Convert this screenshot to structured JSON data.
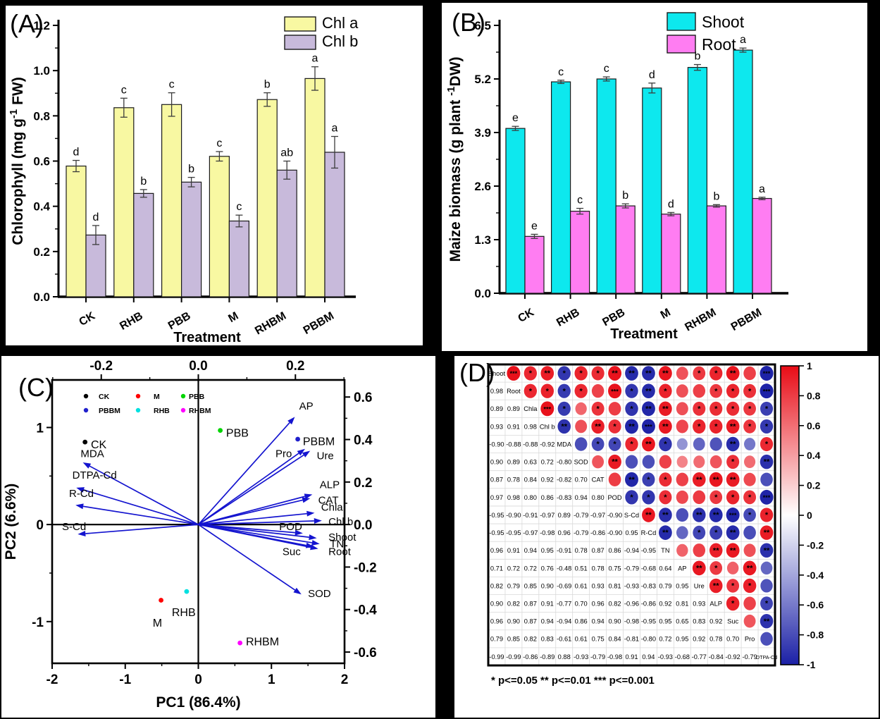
{
  "figure": {
    "background": "#000000",
    "panel_labels": {
      "A": "(A)",
      "B": "(B)",
      "C": "(C)",
      "D": "(D)"
    },
    "significance_note": "* p<=0.05  ** p<=0.01  *** p<=0.001"
  },
  "chart_data": [
    {
      "id": "A",
      "type": "bar",
      "xlabel": "Treatment",
      "ylabel": {
        "pre": "Chlorophyll  (mg g",
        "sup": "-1",
        "post": " FW)"
      },
      "categories": [
        "CK",
        "RHB",
        "PBB",
        "M",
        "RHBM",
        "PBBM"
      ],
      "yticks": [
        0.0,
        0.2,
        0.4,
        0.6,
        0.8,
        1.0,
        1.2
      ],
      "ylim": [
        0,
        1.2
      ],
      "legend_position": "top-right",
      "series": [
        {
          "name": "Chl a",
          "color": "#f8f8a2",
          "values": [
            0.578,
            0.836,
            0.85,
            0.621,
            0.872,
            0.965
          ],
          "errors": [
            0.025,
            0.042,
            0.052,
            0.021,
            0.03,
            0.052
          ],
          "letters": [
            "d",
            "c",
            "c",
            "c",
            "b",
            "a"
          ]
        },
        {
          "name": "Chl b",
          "color": "#c8badb",
          "values": [
            0.273,
            0.457,
            0.507,
            0.335,
            0.56,
            0.639
          ],
          "errors": [
            0.042,
            0.017,
            0.021,
            0.026,
            0.04,
            0.07
          ],
          "letters": [
            "d",
            "b",
            "b",
            "c",
            "ab",
            "a"
          ]
        }
      ]
    },
    {
      "id": "B",
      "type": "bar",
      "xlabel": "Treatment",
      "ylabel": {
        "pre": "Maize biomass (g plant ",
        "sup": "-1",
        "post": "DW)"
      },
      "categories": [
        "CK",
        "RHB",
        "PBB",
        "M",
        "RHBM",
        "PBBM"
      ],
      "yticks": [
        0.0,
        1.3,
        2.6,
        3.9,
        5.2,
        6.5
      ],
      "ylim": [
        0,
        6.5
      ],
      "legend_position": "top-right",
      "series": [
        {
          "name": "Shoot",
          "color": "#0de8ee",
          "values": [
            4.0,
            5.13,
            5.2,
            4.98,
            5.48,
            5.9
          ],
          "errors": [
            0.05,
            0.04,
            0.05,
            0.12,
            0.07,
            0.05
          ],
          "letters": [
            "e",
            "c",
            "c",
            "d",
            "b",
            "a"
          ]
        },
        {
          "name": "Root",
          "color": "#ff7df2",
          "values": [
            1.38,
            1.99,
            2.12,
            1.92,
            2.12,
            2.3
          ],
          "errors": [
            0.05,
            0.07,
            0.05,
            0.04,
            0.03,
            0.03
          ],
          "letters": [
            "e",
            "c",
            "b",
            "d",
            "b",
            "a"
          ]
        }
      ]
    },
    {
      "id": "C",
      "type": "scatter",
      "xlabel": "PC1 (86.4%)",
      "ylabel": "PC2 (6.6%)",
      "xticks": [
        -2,
        -1,
        0,
        1,
        2
      ],
      "yticks": [
        -1,
        0,
        1
      ],
      "top_ticks": [
        -0.2,
        0.0,
        0.2
      ],
      "right_ticks": [
        0.6,
        0.4,
        0.2,
        0.0,
        -0.2,
        -0.4,
        -0.6
      ],
      "xlim": [
        -2,
        2
      ],
      "ylim": [
        -1.43,
        1.49
      ],
      "loading_x_scale": 6.64,
      "loading_y_scale": 2.19,
      "arrow_color": "#1414cf",
      "legend": [
        {
          "label": "CK",
          "color": "#000000"
        },
        {
          "label": "M",
          "color": "#ff0000"
        },
        {
          "label": "PBB",
          "color": "#00d400"
        },
        {
          "label": "PBBM",
          "color": "#2020cc"
        },
        {
          "label": "RHB",
          "color": "#00e0e0"
        },
        {
          "label": "RHBM",
          "color": "#ff00ff"
        }
      ],
      "points": [
        {
          "label": "CK",
          "color": "#000000",
          "x": -1.55,
          "y": 0.85,
          "lx": -1.47,
          "ly": 0.83,
          "anchor": "start"
        },
        {
          "label": "M",
          "color": "#ff0000",
          "x": -0.51,
          "y": -0.78,
          "lx": -0.56,
          "ly": -1.01,
          "anchor": "middle"
        },
        {
          "label": "PBB",
          "color": "#00d400",
          "x": 0.3,
          "y": 0.97,
          "lx": 0.38,
          "ly": 0.95,
          "anchor": "start"
        },
        {
          "label": "PBBM",
          "color": "#2020cc",
          "x": 1.36,
          "y": 0.88,
          "lx": 1.43,
          "ly": 0.86,
          "anchor": "start"
        },
        {
          "label": "RHB",
          "color": "#00e0e0",
          "x": -0.16,
          "y": -0.69,
          "lx": -0.2,
          "ly": -0.9,
          "anchor": "middle"
        },
        {
          "label": "RHBM",
          "color": "#ff00ff",
          "x": 0.57,
          "y": -1.22,
          "lx": 0.65,
          "ly": -1.2,
          "anchor": "start"
        }
      ],
      "arrows": [
        {
          "label": "AP",
          "x": 1.32,
          "y": 1.11,
          "lx": 1.38,
          "ly": 1.22,
          "anchor": "start"
        },
        {
          "label": "Pro",
          "x": 1.46,
          "y": 0.78,
          "lx": 1.28,
          "ly": 0.73,
          "anchor": "end"
        },
        {
          "label": "Ure",
          "x": 1.53,
          "y": 0.76,
          "lx": 1.62,
          "ly": 0.71,
          "anchor": "start"
        },
        {
          "label": "ALP",
          "x": 1.56,
          "y": 0.31,
          "lx": 1.66,
          "ly": 0.41,
          "anchor": "start"
        },
        {
          "label": "CAT",
          "x": 1.53,
          "y": 0.27,
          "lx": 1.64,
          "ly": 0.25,
          "anchor": "start"
        },
        {
          "label": "Chla",
          "x": 1.59,
          "y": 0.12,
          "lx": 1.68,
          "ly": 0.18,
          "anchor": "start"
        },
        {
          "label": "Chl b",
          "x": 1.69,
          "y": 0.04,
          "lx": 1.78,
          "ly": 0.03,
          "anchor": "start"
        },
        {
          "label": "POD",
          "x": 1.43,
          "y": -0.09,
          "lx": 1.42,
          "ly": -0.02,
          "anchor": "end"
        },
        {
          "label": "Shoot",
          "x": 1.62,
          "y": -0.14,
          "lx": 1.78,
          "ly": -0.13,
          "anchor": "start"
        },
        {
          "label": "TN",
          "x": 1.66,
          "y": -0.2,
          "lx": 1.8,
          "ly": -0.2,
          "anchor": "start"
        },
        {
          "label": "Root",
          "x": 1.64,
          "y": -0.25,
          "lx": 1.78,
          "ly": -0.28,
          "anchor": "start"
        },
        {
          "label": "Suc",
          "x": 1.58,
          "y": -0.23,
          "lx": 1.4,
          "ly": -0.28,
          "anchor": "end"
        },
        {
          "label": "SOD",
          "x": 1.41,
          "y": -0.72,
          "lx": 1.5,
          "ly": -0.71,
          "anchor": "start"
        },
        {
          "label": "MDA",
          "x": -1.58,
          "y": 0.64,
          "lx": -1.45,
          "ly": 0.73,
          "anchor": "middle"
        },
        {
          "label": "DTPA-Cd",
          "x": -1.67,
          "y": 0.38,
          "lx": -1.42,
          "ly": 0.51,
          "anchor": "middle"
        },
        {
          "label": "R-Cd",
          "x": -1.68,
          "y": 0.2,
          "lx": -1.6,
          "ly": 0.32,
          "anchor": "middle"
        },
        {
          "label": "S-Cd",
          "x": -1.65,
          "y": -0.1,
          "lx": -1.7,
          "ly": -0.02,
          "anchor": "middle"
        }
      ]
    },
    {
      "id": "D",
      "type": "heatmap",
      "variables": [
        "Shoot",
        "Root",
        "Chla",
        "Chl b",
        "MDA",
        "SOD",
        "CAT",
        "POD",
        "S-Cd",
        "R-Cd",
        "TN",
        "AP",
        "Ure",
        "ALP",
        "Suc",
        "Pro",
        "DTPA-Cd"
      ],
      "lower_values": [
        [
          0.98
        ],
        [
          0.89,
          0.89
        ],
        [
          0.93,
          0.91,
          0.98
        ],
        [
          -0.9,
          -0.88,
          -0.88,
          -0.92
        ],
        [
          0.9,
          0.89,
          0.63,
          0.72,
          -0.8
        ],
        [
          0.87,
          0.78,
          0.84,
          0.92,
          -0.82,
          0.7
        ],
        [
          0.97,
          0.98,
          0.8,
          0.86,
          -0.83,
          0.94,
          0.8
        ],
        [
          -0.95,
          -0.9,
          -0.91,
          -0.97,
          0.89,
          -0.79,
          -0.97,
          -0.9
        ],
        [
          -0.95,
          -0.95,
          -0.97,
          -0.98,
          0.96,
          -0.79,
          -0.86,
          -0.9,
          0.95
        ],
        [
          0.96,
          0.91,
          0.94,
          0.95,
          -0.91,
          0.78,
          0.87,
          0.86,
          -0.94,
          -0.95
        ],
        [
          0.71,
          0.72,
          0.72,
          0.76,
          -0.48,
          0.51,
          0.78,
          0.75,
          -0.79,
          -0.68,
          0.64
        ],
        [
          0.82,
          0.79,
          0.85,
          0.9,
          -0.69,
          0.61,
          0.93,
          0.81,
          -0.93,
          -0.83,
          0.79,
          0.95
        ],
        [
          0.9,
          0.82,
          0.87,
          0.91,
          -0.77,
          0.7,
          0.96,
          0.82,
          -0.96,
          -0.86,
          0.92,
          0.81,
          0.93
        ],
        [
          0.96,
          0.9,
          0.87,
          0.94,
          -0.94,
          0.86,
          0.94,
          0.9,
          -0.98,
          -0.95,
          0.95,
          0.65,
          0.83,
          0.92
        ],
        [
          0.79,
          0.85,
          0.82,
          0.83,
          -0.61,
          0.61,
          0.75,
          0.84,
          -0.81,
          -0.8,
          0.72,
          0.95,
          0.92,
          0.78,
          0.7
        ],
        [
          -0.99,
          -0.99,
          -0.86,
          -0.89,
          0.88,
          -0.93,
          -0.79,
          -0.98,
          0.91,
          0.94,
          -0.93,
          -0.68,
          -0.77,
          -0.84,
          -0.92,
          -0.79
        ]
      ],
      "upper_stars": [
        [
          "***",
          "*",
          "**",
          "*",
          "*",
          "*",
          "**",
          "**",
          "**",
          "**",
          "",
          "*",
          "*",
          "**",
          "",
          "***"
        ],
        [
          "*",
          "*",
          "*",
          "*",
          "",
          "***",
          "*",
          "**",
          "*",
          "",
          "",
          "*",
          "*",
          "*",
          "***"
        ],
        [
          "***",
          "*",
          "",
          "*",
          "",
          "*",
          "**",
          "**",
          "",
          "*",
          "*",
          "*",
          "*",
          "*"
        ],
        [
          "**",
          "",
          "**",
          "*",
          "**",
          "***",
          "**",
          "",
          "*",
          "*",
          "**",
          "*",
          "*"
        ],
        [
          "",
          "*",
          "*",
          "*",
          "**",
          "*",
          "",
          "",
          "",
          "**",
          "",
          "*"
        ],
        [
          "",
          "**",
          "",
          "",
          "",
          "",
          "",
          "",
          "*",
          "",
          "**"
        ],
        [
          "",
          "**",
          "*",
          "*",
          "",
          "**",
          "**",
          "**",
          "",
          ""
        ],
        [
          "*",
          "*",
          "*",
          "",
          "",
          "*",
          "*",
          "*",
          "***"
        ],
        [
          "**",
          "**",
          "",
          "**",
          "**",
          "***",
          "*",
          "*"
        ],
        [
          "**",
          "",
          "*",
          "*",
          "**",
          "",
          "**"
        ],
        [
          "",
          "",
          "**",
          "**",
          "",
          "**"
        ],
        [
          "**",
          "*",
          "",
          "**",
          ""
        ],
        [
          "**",
          "*",
          "*",
          ""
        ],
        [
          "*",
          "",
          "*"
        ],
        [
          "",
          "**"
        ],
        [
          ""
        ]
      ],
      "colorbar_ticks": [
        1,
        0.8,
        0.6,
        0.4,
        0.2,
        0,
        -0.2,
        -0.4,
        -0.6,
        -0.8,
        -1
      ],
      "positive_color": "#e80c16",
      "negative_color": "#1b20a6",
      "note": "* p<=0.05  ** p<=0.01  *** p<=0.001"
    }
  ]
}
